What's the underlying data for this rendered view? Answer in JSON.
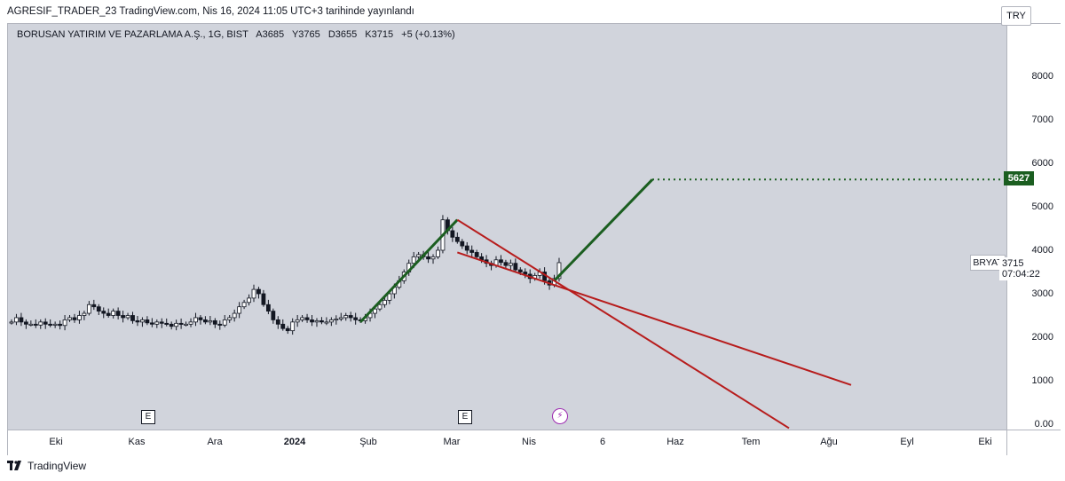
{
  "header": {
    "text": "AGRESIF_TRADER_23 TradingView.com, Nis 16, 2024 11:05 UTC+3 tarihinde yayınlandı"
  },
  "legend": {
    "symbol": "BORUSAN YATIRIM VE PAZARLAMA A.Ş., 1G, BIST",
    "open": "A3685",
    "high": "Y3765",
    "low": "D3655",
    "close": "K3715",
    "change": "+5 (+0.13%)"
  },
  "currency": "TRY",
  "labels": {
    "target": "5627",
    "symbol_tag": "BRYAT",
    "last_price": "3715",
    "countdown": "07:04:22",
    "earnings_marker": "E",
    "dividend_marker": "⚡"
  },
  "footer": {
    "brand": "TradingView"
  },
  "colors": {
    "up_trend": "#1b5e20",
    "channel": "#b71c1c",
    "background": "#d1d4dc"
  },
  "chart_data": {
    "type": "candlestick",
    "title": "BORUSAN YATIRIM VE PAZARLAMA A.Ş., 1G, BIST",
    "xlabel": "",
    "ylabel": "",
    "ylim": [
      0,
      9000
    ],
    "y_ticks": [
      "0.00",
      "1000",
      "2000",
      "3000",
      "4000",
      "5000",
      "6000",
      "7000",
      "8000"
    ],
    "x_ticks": [
      "Eki",
      "Kas",
      "Ara",
      "2024",
      "Şub",
      "Mar",
      "Nis",
      "6",
      "Haz",
      "Tem",
      "Ağu",
      "Eyl",
      "Eki"
    ],
    "close_series": [
      2350,
      2450,
      2350,
      2300,
      2300,
      2280,
      2350,
      2300,
      2280,
      2300,
      2270,
      2400,
      2450,
      2400,
      2500,
      2550,
      2750,
      2700,
      2600,
      2550,
      2500,
      2600,
      2500,
      2450,
      2500,
      2380,
      2350,
      2400,
      2330,
      2300,
      2350,
      2320,
      2300,
      2250,
      2320,
      2300,
      2300,
      2350,
      2450,
      2400,
      2350,
      2380,
      2300,
      2280,
      2400,
      2450,
      2550,
      2700,
      2800,
      2900,
      3100,
      3000,
      2750,
      2600,
      2400,
      2300,
      2200,
      2150,
      2350,
      2400,
      2450,
      2400,
      2350,
      2380,
      2350,
      2350,
      2400,
      2420,
      2450,
      2500,
      2450,
      2400,
      2380,
      2450,
      2550,
      2650,
      2750,
      2850,
      3000,
      3150,
      3300,
      3500,
      3700,
      3850,
      3900,
      3850,
      3800,
      3850,
      4000,
      4700,
      4450,
      4300,
      4200,
      4100,
      4000,
      3950,
      3850,
      3780,
      3700,
      3650,
      3780,
      3720,
      3650,
      3700,
      3550,
      3500,
      3450,
      3350,
      3420,
      3500,
      3300,
      3200,
      3350,
      3715
    ],
    "annotations": [
      {
        "type": "trend_line",
        "color": "green",
        "from": {
          "x": "2024-01-23",
          "y": 2350
        },
        "to": {
          "x": "2024-02-29",
          "y": 4700
        }
      },
      {
        "type": "trend_line",
        "color": "green",
        "from": {
          "x": "2024-04-02",
          "y": 3300
        },
        "to": {
          "x": "2024-05-24",
          "y": 5627
        }
      },
      {
        "type": "horizontal_ray",
        "style": "dotted",
        "color": "green",
        "y": 5627
      },
      {
        "type": "trend_line",
        "color": "red",
        "from": {
          "x": "2024-02-29",
          "y": 4700
        },
        "to": {
          "x": "2024-04-02",
          "y": 3300
        }
      },
      {
        "type": "trend_line",
        "color": "red",
        "from": {
          "x": "2024-02-29",
          "y": 3950
        },
        "to": {
          "x": "2024-04-02",
          "y": 3200
        }
      }
    ]
  }
}
